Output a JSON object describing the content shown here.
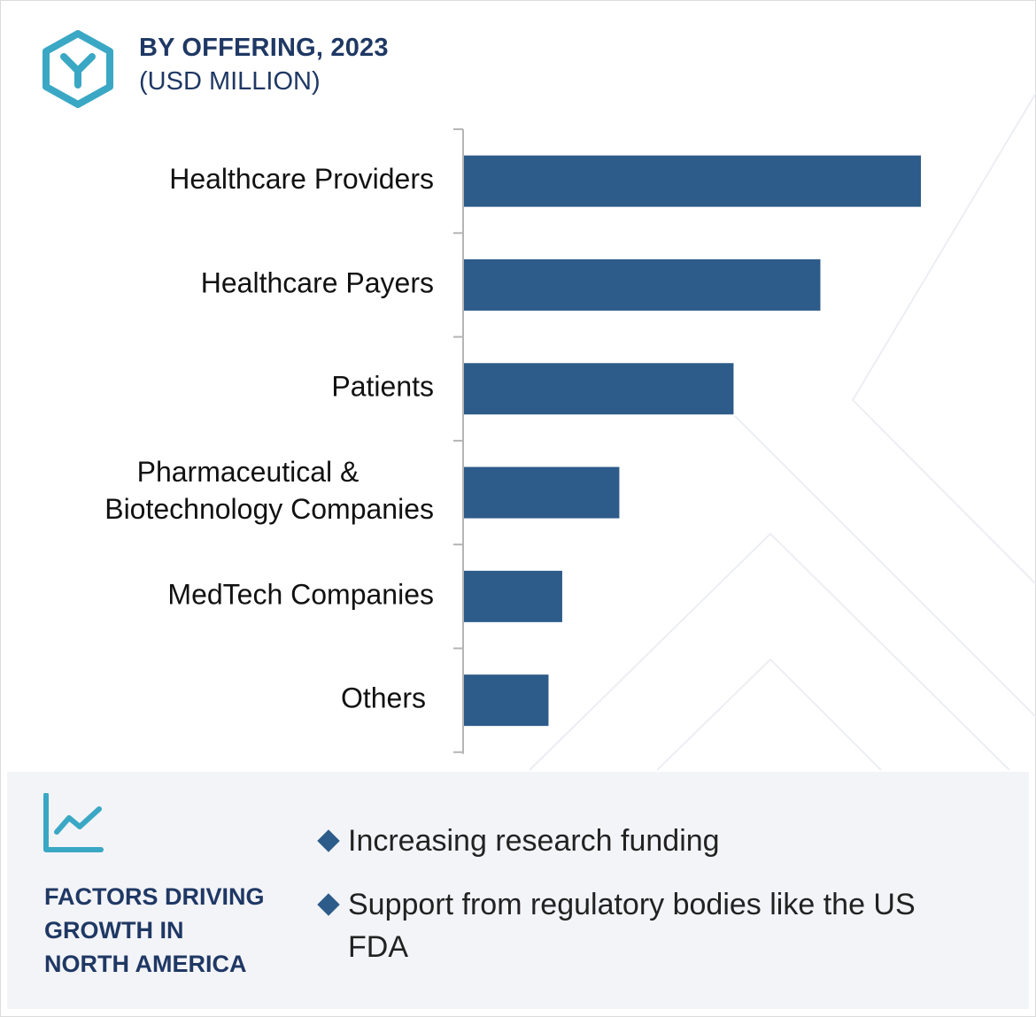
{
  "header": {
    "title": "BY OFFERING, 2023",
    "subtitle": "(USD MILLION)"
  },
  "colors": {
    "bar": "#2d5b8a",
    "heading": "#1f3864",
    "icon": "#3aa8c4",
    "panel_bg": "#f3f4f8"
  },
  "icons": {
    "logo": "hexagon-y-logo-icon",
    "trend": "line-chart-trend-icon",
    "bullet": "diamond-bullet-icon"
  },
  "chart_data": {
    "type": "bar",
    "orientation": "horizontal",
    "title": "BY OFFERING, 2023",
    "subtitle": "(USD MILLION)",
    "categories": [
      [
        "Healthcare Providers"
      ],
      [
        "Healthcare Payers"
      ],
      [
        "Patients"
      ],
      [
        "Pharmaceutical &",
        "Biotechnology Companies"
      ],
      [
        "MedTech Companies"
      ],
      [
        "Others"
      ]
    ],
    "values": [
      100,
      78,
      59,
      34,
      21.5,
      18.5
    ],
    "xlim": [
      0,
      100
    ],
    "value_axis_visible": false,
    "grid": false,
    "legend": "none"
  },
  "panel": {
    "heading": [
      "FACTORS DRIVING",
      "GROWTH IN",
      "NORTH AMERICA"
    ],
    "factors": [
      "Increasing research funding",
      "Support from regulatory bodies like the US FDA"
    ]
  }
}
